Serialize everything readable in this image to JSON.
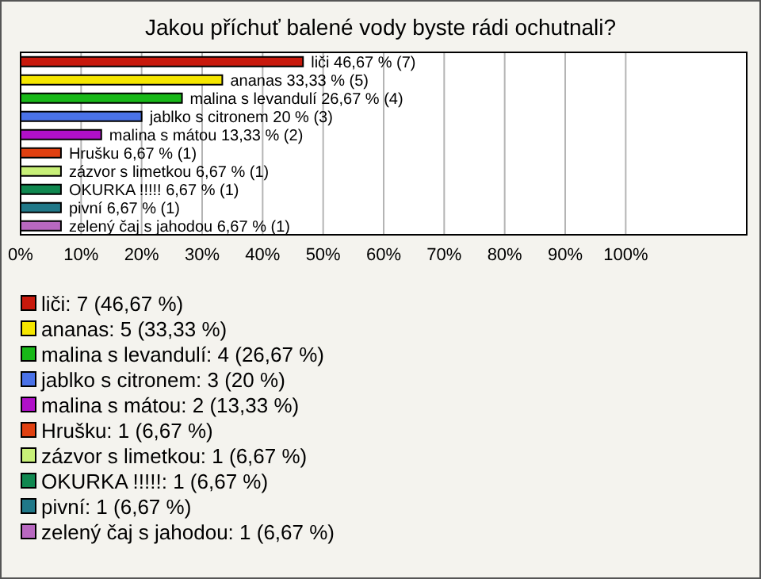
{
  "chart_data": {
    "type": "bar",
    "orientation": "horizontal",
    "title": "Jakou příchuť balené vody byste rádi ochutnali?",
    "categories": [
      null,
      null,
      null,
      null,
      null,
      null,
      null,
      null,
      null,
      null
    ],
    "values": [
      46.67,
      33.33,
      26.67,
      20,
      13.33,
      6.67,
      6.67,
      6.67,
      6.67,
      6.67
    ],
    "colors": [
      "#c8190c",
      "#f5e600",
      "#18b818",
      "#4a72e8",
      "#b010c8",
      "#e04010",
      "#c8f078",
      "#108850",
      "#207888",
      "#b868c0"
    ],
    "value_labels": [
      "liči 46,67 % (7)",
      "ananas 33,33 % (5)",
      "malina s levandulí 26,67 % (4)",
      "jablko s citronem 20 % (3)",
      "malina s mátou 13,33 % (2)",
      "Hrušku 6,67 % (1)",
      "zázvor s limetkou 6,67 % (1)",
      "OKURKA !!!!! 6,67 % (1)",
      "pivní 6,67 % (1)",
      "zelený čaj s jahodou 6,67 % (1)"
    ],
    "xlim": [
      0,
      120
    ],
    "xticks": [
      {
        "value": 0,
        "label": "0%"
      },
      {
        "value": 10,
        "label": "10%"
      },
      {
        "value": 20,
        "label": "20%"
      },
      {
        "value": 30,
        "label": "30%"
      },
      {
        "value": 40,
        "label": "40%"
      },
      {
        "value": 50,
        "label": "50%"
      },
      {
        "value": 60,
        "label": "60%"
      },
      {
        "value": 70,
        "label": "70%"
      },
      {
        "value": 80,
        "label": "80%"
      },
      {
        "value": 90,
        "label": "90%"
      },
      {
        "value": 100,
        "label": "100%"
      }
    ],
    "grid": "x",
    "tick_labels": "x",
    "annotations": [
      "liči: 7 (46,67 %)",
      "ananas: 5 (33,33 %)",
      "malina s levandulí: 4 (26,67 %)",
      "jablko s citronem: 3 (20 %)",
      "malina s mátou: 2 (13,33 %)",
      "Hrušku: 1 (6,67 %)",
      "zázvor s limetkou: 1 (6,67 %)",
      "OKURKA !!!!!: 1 (6,67 %)",
      "pivní: 1 (6,67 %)",
      "zelený čaj s jahodou: 1 (6,67 %)"
    ]
  }
}
